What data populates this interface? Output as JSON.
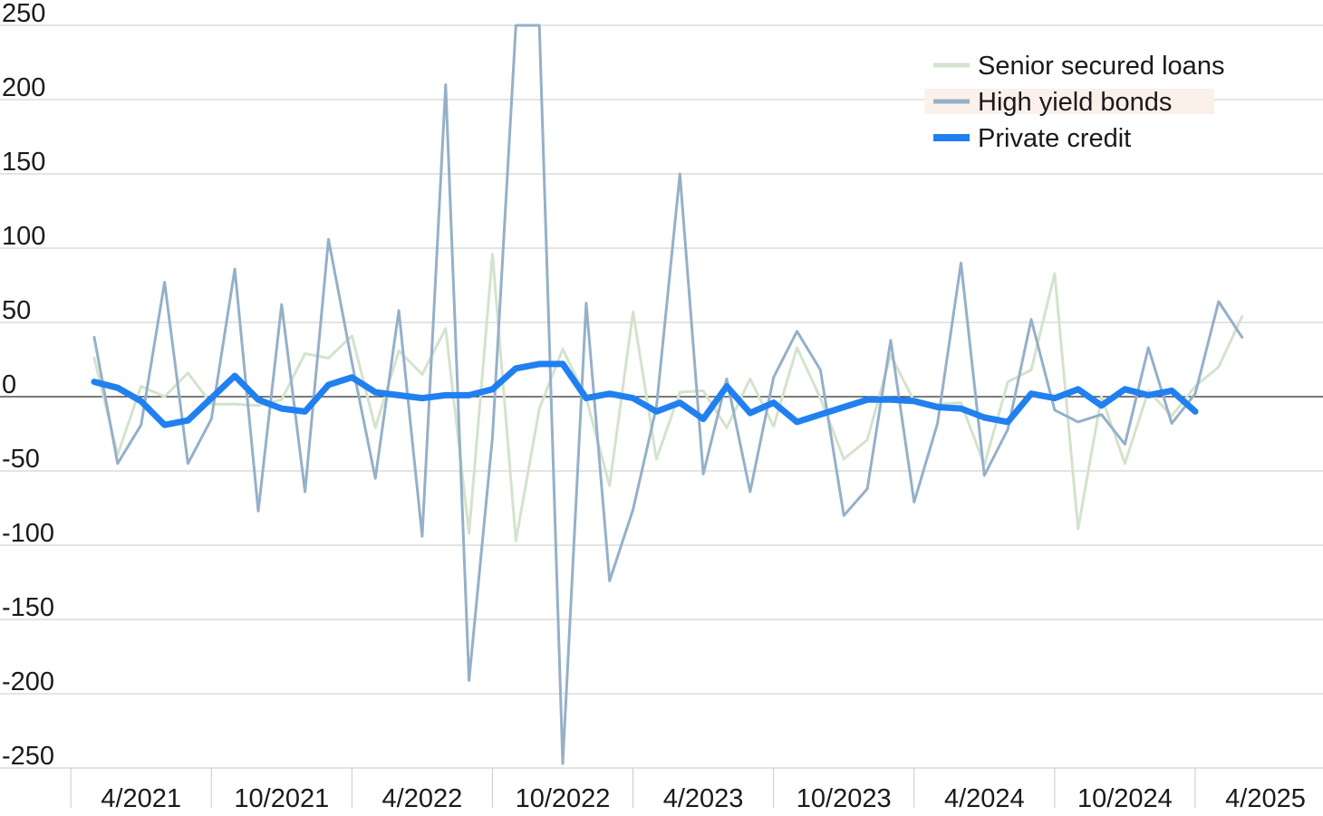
{
  "chart_data": {
    "type": "line",
    "title": "",
    "xlabel": "",
    "ylabel": "",
    "ylim": [
      -250,
      250
    ],
    "yticks": [
      250,
      200,
      150,
      100,
      50,
      0,
      -50,
      -100,
      -150,
      -200,
      -250
    ],
    "xtick_labels": [
      "4/2021",
      "10/2021",
      "4/2022",
      "10/2022",
      "4/2023",
      "10/2023",
      "4/2024",
      "10/2024",
      "4/2025"
    ],
    "grid": "horizontal",
    "legend_position": "top-right",
    "x_start": "2/2021",
    "x_frequency": "monthly",
    "series": [
      {
        "name": "Senior secured loans",
        "color": "#d3e3cc",
        "values": [
          26,
          -39,
          7,
          0,
          16,
          -5,
          -5,
          -6,
          -2,
          29,
          26,
          41,
          -21,
          31,
          15,
          46,
          -92,
          96,
          -97,
          -8,
          32,
          -1,
          -60,
          57,
          -42,
          3,
          4,
          -21,
          12,
          -20,
          33,
          -1,
          -42,
          -29,
          28,
          -3,
          -5,
          -4,
          -46,
          10,
          18,
          83,
          -89,
          0,
          -45,
          4,
          -13,
          7,
          20,
          54
        ]
      },
      {
        "name": "High yield bonds",
        "color": "#95b0c8",
        "values": [
          40,
          -45,
          -19,
          77,
          -45,
          -15,
          86,
          -77,
          62,
          -64,
          106,
          23,
          -55,
          58,
          -94,
          210,
          -191,
          -27,
          250,
          250,
          -247,
          63,
          -124,
          -76,
          -7,
          150,
          -52,
          12,
          -64,
          13,
          44,
          18,
          -80,
          -62,
          38,
          -71,
          -18,
          90,
          -53,
          -22,
          52,
          -9,
          -17,
          -12,
          -32,
          33,
          -18,
          2,
          64,
          40
        ]
      },
      {
        "name": "Private credit",
        "color": "#2080f0",
        "values": [
          10,
          6,
          -3,
          -19,
          -16,
          -1,
          14,
          -2,
          -8,
          -10,
          8,
          13,
          3,
          1,
          -1,
          1,
          1,
          5,
          19,
          22,
          22,
          -1,
          2,
          -1,
          -10,
          -4,
          -15,
          7,
          -11,
          -4,
          -17,
          -12,
          -7,
          -2,
          -2,
          -3,
          -7,
          -8,
          -14,
          -17,
          2,
          -1,
          5,
          -6,
          5,
          1,
          4,
          -10
        ]
      }
    ]
  }
}
